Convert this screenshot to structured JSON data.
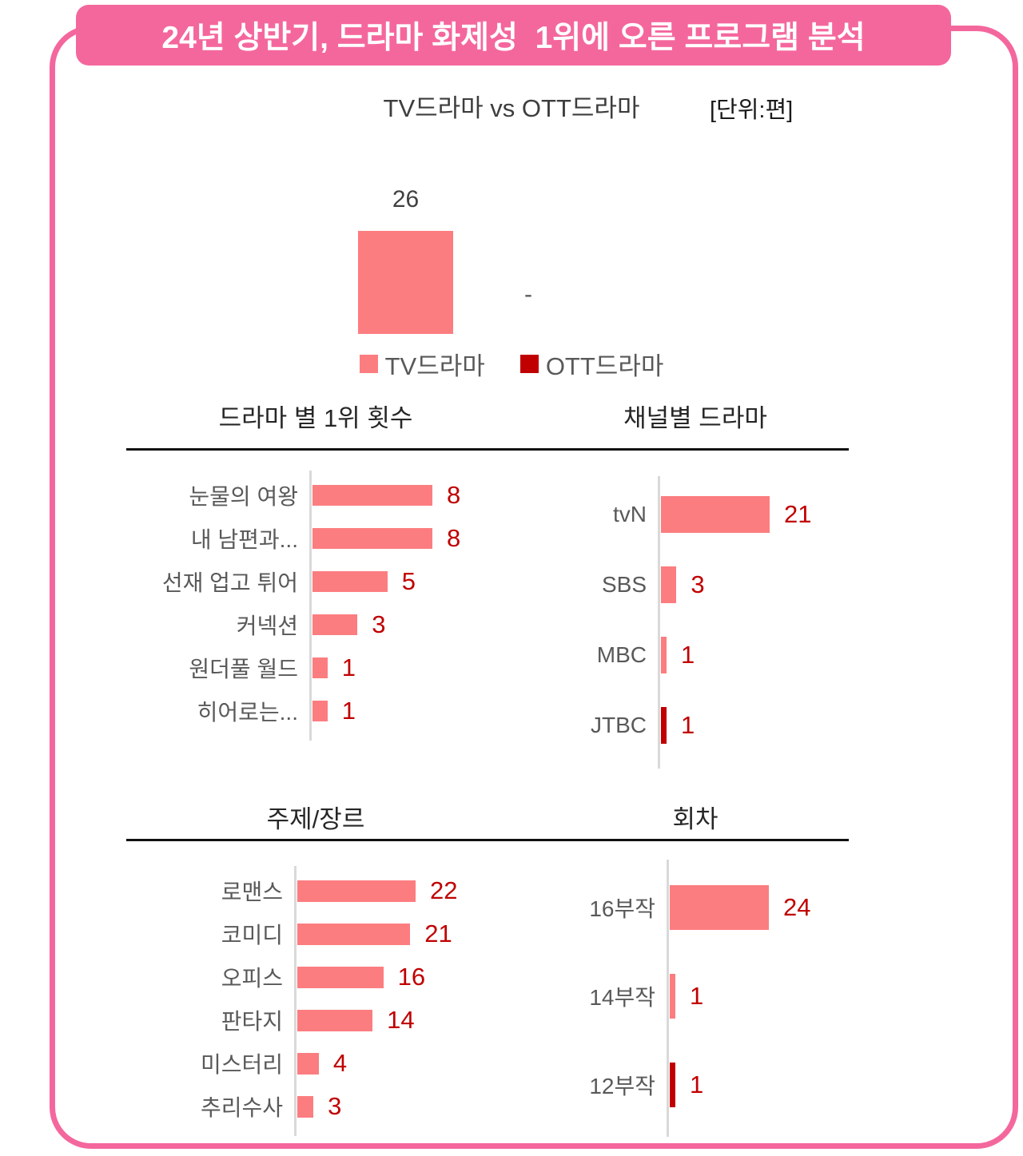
{
  "header": {
    "title": "24년 상반기, 드라마 화제성  1위에 오른 프로그램 분석"
  },
  "colors": {
    "pink": "#FC7D80",
    "dark_red": "#C00000",
    "header_pink": "#F4679D",
    "value_red": "#C00000",
    "label_gray": "#595959",
    "title_dark": "#262626",
    "axis_gray": "#D9D9D9"
  },
  "chart_data": [
    {
      "key": "versus",
      "type": "bar",
      "orientation": "vertical",
      "title": "TV드라마 vs OTT드라마",
      "unit": "[단위:편]",
      "categories": [
        "TV드라마",
        "OTT드라마"
      ],
      "values": [
        26,
        0
      ],
      "value_labels": [
        "26",
        "-"
      ],
      "ylim": [
        0,
        26
      ],
      "grid": false,
      "legend": [
        "TV드라마",
        "OTT드라마"
      ],
      "legend_colors": [
        "pink",
        "dark_red"
      ],
      "legend_position": "bottom",
      "bar_colors": [
        "pink",
        "dark_red"
      ]
    },
    {
      "key": "rank",
      "type": "bar",
      "orientation": "horizontal",
      "title": "드라마 별 1위 횟수",
      "categories": [
        "눈물의 여왕",
        "내 남편과...",
        "선재 업고 튀어",
        "커넥션",
        "원더풀 월드",
        "히어로는..."
      ],
      "values": [
        8,
        8,
        5,
        3,
        1,
        1
      ],
      "xlim": [
        0,
        8
      ],
      "grid": false,
      "bar_colors": [
        "pink",
        "pink",
        "pink",
        "pink",
        "pink",
        "pink"
      ]
    },
    {
      "key": "channel",
      "type": "bar",
      "orientation": "horizontal",
      "title": "채널별 드라마",
      "categories": [
        "tvN",
        "SBS",
        "MBC",
        "JTBC"
      ],
      "values": [
        21,
        3,
        1,
        1
      ],
      "xlim": [
        0,
        21
      ],
      "grid": false,
      "bar_colors": [
        "pink",
        "pink",
        "pink",
        "dark_red"
      ]
    },
    {
      "key": "genre",
      "type": "bar",
      "orientation": "horizontal",
      "title": "주제/장르",
      "categories": [
        "로맨스",
        "코미디",
        "오피스",
        "판타지",
        "미스터리",
        "추리수사"
      ],
      "values": [
        22,
        21,
        16,
        14,
        4,
        3
      ],
      "xlim": [
        0,
        22
      ],
      "grid": false,
      "bar_colors": [
        "pink",
        "pink",
        "pink",
        "pink",
        "pink",
        "pink"
      ]
    },
    {
      "key": "episodes",
      "type": "bar",
      "orientation": "horizontal",
      "title": "회차",
      "categories": [
        "16부작",
        "14부작",
        "12부작"
      ],
      "values": [
        24,
        1,
        1
      ],
      "xlim": [
        0,
        24
      ],
      "grid": false,
      "bar_colors": [
        "pink",
        "pink",
        "dark_red"
      ]
    }
  ]
}
